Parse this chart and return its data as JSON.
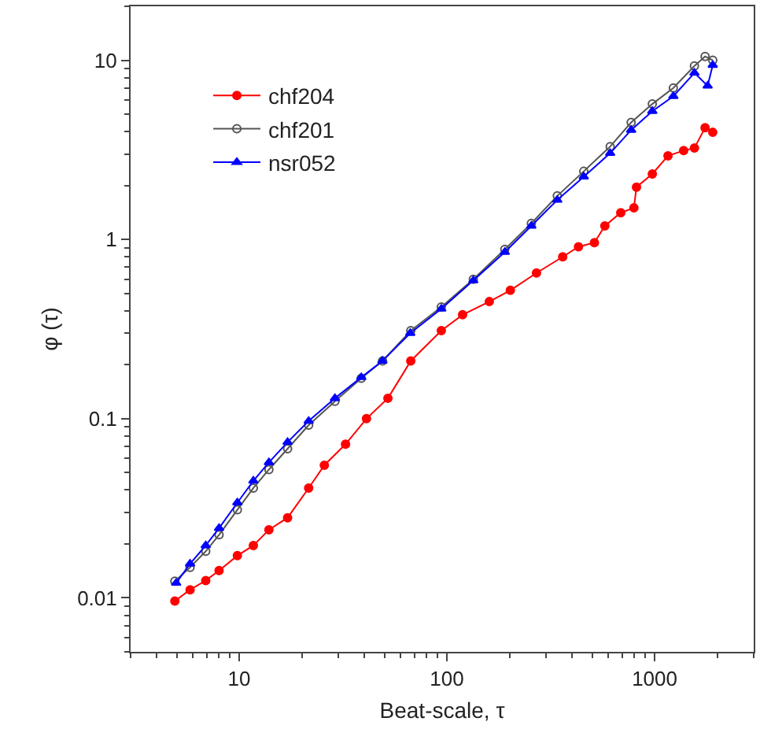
{
  "chart_data": {
    "type": "line",
    "xlabel": "Beat-scale, τ",
    "ylabel": "φ (τ)",
    "log": "xy",
    "xlim": [
      3,
      3000
    ],
    "xticks": [
      10,
      100,
      1000
    ],
    "ylim": [
      0.005,
      20
    ],
    "yticks": [
      0.01,
      0.1,
      1,
      10
    ],
    "legend": "top left",
    "line_style": "solid",
    "series": [
      {
        "name": "chf204",
        "color": "#ff0000",
        "marker": "circle",
        "x": [
          4.9,
          5.8,
          6.9,
          8.0,
          9.8,
          11.7,
          13.9,
          17.1,
          21.6,
          25.7,
          32.5,
          41,
          52,
          67,
          94,
          119,
          160,
          202,
          270,
          361,
          430,
          513,
          576,
          687,
          795,
          818,
          975,
          1160,
          1380,
          1555,
          1750,
          1905
        ],
        "values": [
          0.0096,
          0.0111,
          0.0125,
          0.0142,
          0.0172,
          0.0196,
          0.024,
          0.028,
          0.041,
          0.055,
          0.072,
          0.1,
          0.13,
          0.21,
          0.31,
          0.38,
          0.45,
          0.52,
          0.65,
          0.8,
          0.91,
          0.96,
          1.19,
          1.41,
          1.5,
          1.96,
          2.32,
          2.93,
          3.13,
          3.24,
          4.2,
          3.96
        ]
      },
      {
        "name": "chf201",
        "color": "#555555",
        "marker": "circle-open",
        "x": [
          4.9,
          5.8,
          6.9,
          8.0,
          9.8,
          11.7,
          13.9,
          17.1,
          21.6,
          28.9,
          38.7,
          49,
          67,
          94,
          134,
          190,
          255,
          340,
          456,
          611,
          771,
          975,
          1231,
          1555,
          1750,
          1905
        ],
        "values": [
          0.0124,
          0.0148,
          0.0182,
          0.0225,
          0.031,
          0.041,
          0.052,
          0.068,
          0.092,
          0.125,
          0.168,
          0.21,
          0.31,
          0.42,
          0.6,
          0.88,
          1.23,
          1.75,
          2.4,
          3.3,
          4.5,
          5.7,
          7.0,
          9.3,
          10.5,
          10.0
        ]
      },
      {
        "name": "nsr052",
        "color": "#0000ff",
        "marker": "triangle",
        "x": [
          4.97,
          5.8,
          6.9,
          8.0,
          9.8,
          11.7,
          13.9,
          17.1,
          21.6,
          28.9,
          38.7,
          48.9,
          66.6,
          94,
          134,
          190,
          255,
          340,
          456,
          611,
          771,
          975,
          1231,
          1555,
          1800,
          1905
        ],
        "values": [
          0.0121,
          0.0155,
          0.0196,
          0.0245,
          0.034,
          0.045,
          0.057,
          0.074,
          0.097,
          0.13,
          0.17,
          0.21,
          0.3,
          0.41,
          0.59,
          0.85,
          1.19,
          1.66,
          2.24,
          3.03,
          4.08,
          5.2,
          6.3,
          8.5,
          7.2,
          9.4
        ]
      }
    ]
  }
}
